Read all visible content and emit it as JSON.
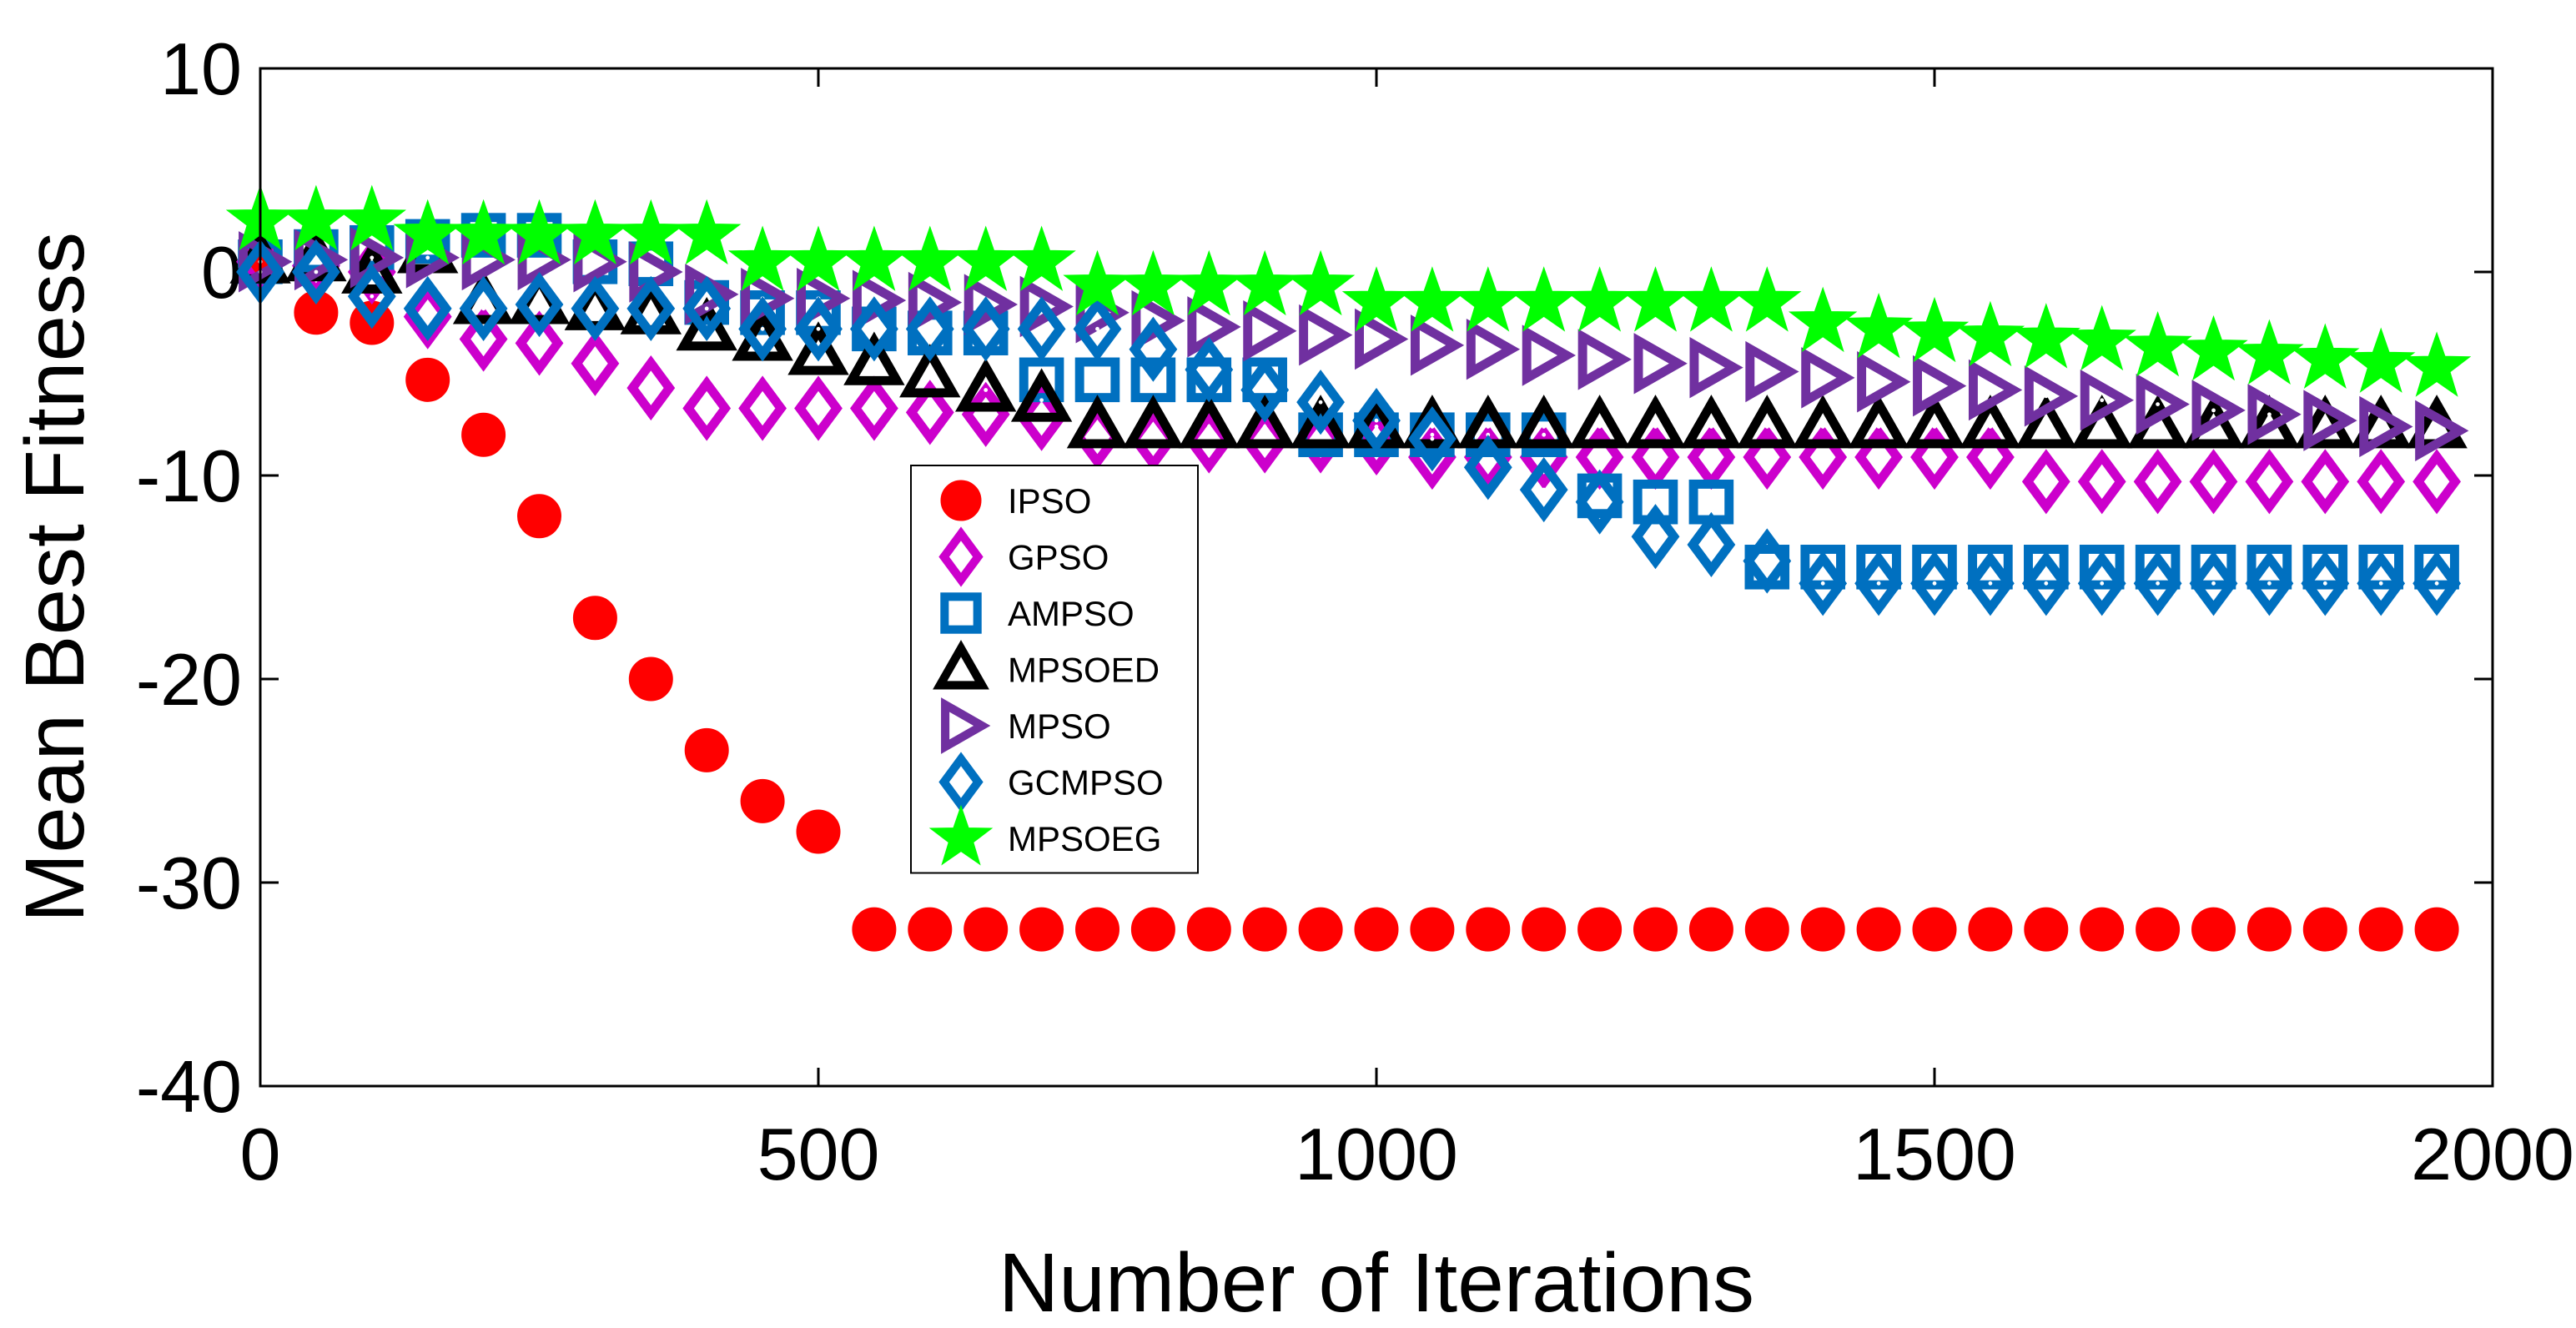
{
  "chart_data": {
    "type": "scatter",
    "title": "",
    "xlabel": "Number of Iterations",
    "ylabel": "Mean Best Fitness",
    "xlim": [
      0,
      2000
    ],
    "ylim": [
      -40,
      10
    ],
    "xticks": [
      0,
      500,
      1000,
      1500,
      2000
    ],
    "yticks": [
      -40,
      -30,
      -20,
      -10,
      0,
      10
    ],
    "xtick_labels": [
      "0",
      "500",
      "1000",
      "1500",
      "2000"
    ],
    "ytick_labels": [
      "-40",
      "-30",
      "-20",
      "-10",
      "0",
      "10"
    ],
    "grid": false,
    "legend_position": "center-left",
    "x": [
      0,
      50,
      100,
      150,
      200,
      250,
      300,
      350,
      400,
      450,
      500,
      550,
      600,
      650,
      700,
      750,
      800,
      850,
      900,
      950,
      1000,
      1050,
      1100,
      1150,
      1200,
      1250,
      1300,
      1350,
      1400,
      1450,
      1500,
      1550,
      1600,
      1650,
      1700,
      1750,
      1800,
      1850,
      1900,
      1950
    ],
    "series": [
      {
        "name": "IPSO",
        "marker": "circle",
        "color": "#ff0000",
        "fill": "filled",
        "values": [
          0.5,
          -2.0,
          -2.5,
          -5.3,
          -8.0,
          -12.0,
          -17.0,
          -20.0,
          -23.5,
          -26.0,
          -27.5,
          -32.3,
          -32.3,
          -32.3,
          -32.3,
          -32.3,
          -32.3,
          -32.3,
          -32.3,
          -32.3,
          -32.3,
          -32.3,
          -32.3,
          -32.3,
          -32.3,
          -32.3,
          -32.3,
          -32.3,
          -32.3,
          -32.3,
          -32.3,
          -32.3,
          -32.3,
          -32.3,
          -32.3,
          -32.3,
          -32.3,
          -32.3,
          -32.3,
          -32.3
        ]
      },
      {
        "name": "GPSO",
        "marker": "diamond",
        "color": "#cc00cc",
        "fill": "open",
        "values": [
          0.5,
          0.3,
          0.0,
          -2.2,
          -3.3,
          -3.5,
          -4.5,
          -5.7,
          -6.7,
          -6.7,
          -6.7,
          -6.7,
          -6.9,
          -7.0,
          -7.2,
          -8.1,
          -8.2,
          -8.3,
          -8.3,
          -8.3,
          -8.4,
          -9.1,
          -9.1,
          -9.1,
          -9.1,
          -9.1,
          -9.1,
          -9.1,
          -9.1,
          -9.1,
          -9.1,
          -9.1,
          -10.3,
          -10.3,
          -10.3,
          -10.3,
          -10.3,
          -10.3,
          -10.3,
          -10.3
        ]
      },
      {
        "name": "AMPSO",
        "marker": "square",
        "color": "#0070c0",
        "fill": "open",
        "values": [
          0.5,
          1.0,
          1.2,
          1.5,
          1.8,
          1.8,
          0.5,
          0.4,
          -1.5,
          -2.0,
          -2.0,
          -2.8,
          -3.0,
          -3.0,
          -5.3,
          -5.3,
          -5.3,
          -5.3,
          -5.3,
          -8.0,
          -8.0,
          -8.0,
          -8.0,
          -8.0,
          -11.0,
          -11.3,
          -11.3,
          -14.5,
          -14.5,
          -14.5,
          -14.5,
          -14.5,
          -14.5,
          -14.5,
          -14.5,
          -14.5,
          -14.5,
          -14.5,
          -14.5,
          -14.5
        ]
      },
      {
        "name": "MPSOED",
        "marker": "triangle-up",
        "color": "#000000",
        "fill": "open",
        "values": [
          0.5,
          0.6,
          0.0,
          1.0,
          -1.5,
          -1.5,
          -1.8,
          -2.0,
          -2.8,
          -3.3,
          -4.0,
          -4.5,
          -5.1,
          -5.8,
          -6.3,
          -7.6,
          -7.6,
          -7.6,
          -7.6,
          -7.6,
          -7.6,
          -7.6,
          -7.6,
          -7.6,
          -7.6,
          -7.6,
          -7.6,
          -7.6,
          -7.6,
          -7.6,
          -7.6,
          -7.6,
          -7.6,
          -7.6,
          -7.6,
          -7.6,
          -7.6,
          -7.6,
          -7.6,
          -7.6
        ]
      },
      {
        "name": "MPSO",
        "marker": "triangle-right",
        "color": "#7030a0",
        "fill": "open",
        "values": [
          0.5,
          0.6,
          0.7,
          0.7,
          0.6,
          0.6,
          0.5,
          0.0,
          -1.1,
          -1.3,
          -1.3,
          -1.4,
          -1.5,
          -1.6,
          -1.7,
          -2.0,
          -2.4,
          -2.7,
          -2.9,
          -3.1,
          -3.3,
          -3.6,
          -3.8,
          -4.1,
          -4.3,
          -4.5,
          -4.7,
          -4.9,
          -5.2,
          -5.4,
          -5.6,
          -5.8,
          -6.1,
          -6.3,
          -6.5,
          -6.8,
          -7.0,
          -7.3,
          -7.6,
          -7.8
        ]
      },
      {
        "name": "GCMPSO",
        "marker": "diamond",
        "color": "#0070c0",
        "fill": "open",
        "values": [
          0.0,
          0.0,
          -1.2,
          -1.8,
          -1.8,
          -1.6,
          -1.8,
          -1.8,
          -1.8,
          -2.8,
          -2.8,
          -2.8,
          -2.8,
          -2.8,
          -2.8,
          -2.8,
          -3.8,
          -4.8,
          -5.8,
          -6.4,
          -7.3,
          -8.2,
          -9.6,
          -10.7,
          -11.3,
          -13.0,
          -13.4,
          -14.2,
          -15.3,
          -15.3,
          -15.3,
          -15.3,
          -15.3,
          -15.3,
          -15.3,
          -15.3,
          -15.3,
          -15.3,
          -15.3,
          -15.3
        ]
      },
      {
        "name": "MPSOEG",
        "marker": "star",
        "color": "#00ff00",
        "fill": "filled",
        "values": [
          2.5,
          2.5,
          2.5,
          1.8,
          1.8,
          1.8,
          1.8,
          1.8,
          1.8,
          0.5,
          0.5,
          0.5,
          0.5,
          0.5,
          0.5,
          -0.7,
          -0.7,
          -0.7,
          -0.7,
          -0.7,
          -1.5,
          -1.5,
          -1.5,
          -1.5,
          -1.5,
          -1.5,
          -1.5,
          -1.5,
          -2.5,
          -2.8,
          -3.0,
          -3.2,
          -3.3,
          -3.4,
          -3.7,
          -3.9,
          -4.1,
          -4.3,
          -4.5,
          -4.7
        ]
      }
    ]
  }
}
